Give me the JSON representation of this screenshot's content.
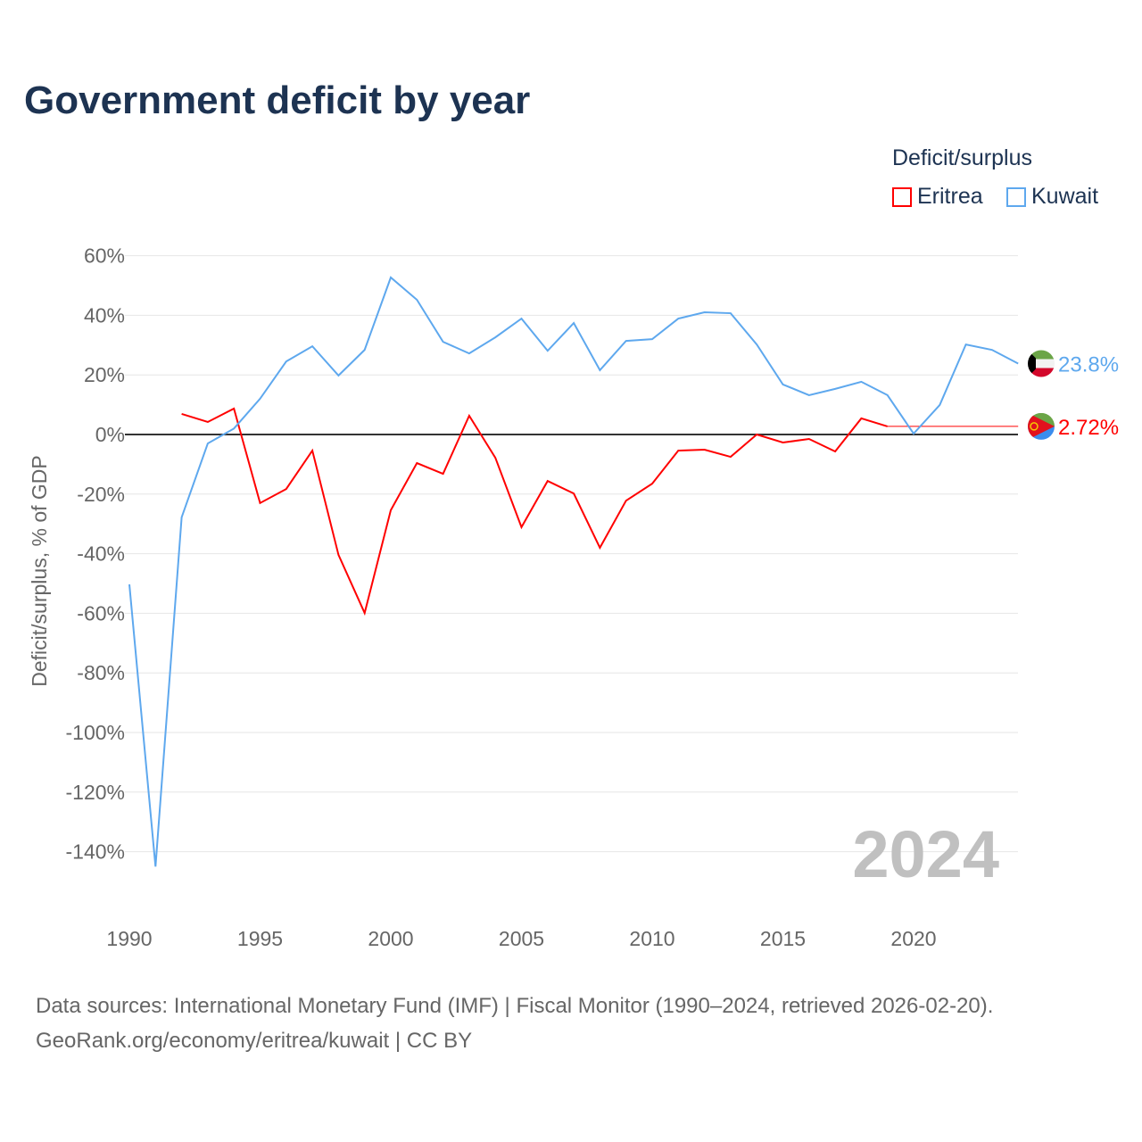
{
  "title": "Government deficit by year",
  "legend": {
    "title": "Deficit/surplus",
    "items": [
      "Eritrea",
      "Kuwait"
    ]
  },
  "footer": {
    "line1": "Data sources: International Monetary Fund (IMF) | Fiscal Monitor (1990–2024, retrieved 2026-02-20).",
    "line2": "GeoRank.org/economy/eritrea/kuwait | CC BY"
  },
  "colors": {
    "eritrea": "#ff0000",
    "kuwait": "#5ea8ee"
  },
  "chart_data": {
    "type": "line",
    "title": "Government deficit by year",
    "ylabel": "Deficit/surplus, % of GDP",
    "xlabel": "",
    "ylim": [
      -150,
      60
    ],
    "xlim": [
      1990,
      2024
    ],
    "yticks": [
      60,
      40,
      20,
      0,
      -20,
      -40,
      -60,
      -80,
      -100,
      -120,
      -140
    ],
    "ytick_labels": [
      "60%",
      "40%",
      "20%",
      "0%",
      "-20%",
      "-40%",
      "-60%",
      "-80%",
      "-100%",
      "-120%",
      "-140%"
    ],
    "xticks": [
      1990,
      1995,
      2000,
      2005,
      2010,
      2015,
      2020
    ],
    "xtick_labels": [
      "1990",
      "1995",
      "2000",
      "2005",
      "2010",
      "2015",
      "2020"
    ],
    "year_label": "2024",
    "series": [
      {
        "name": "Eritrea",
        "color": "#ff0000",
        "end_label": "2.72%",
        "last_value": 2.72,
        "x": [
          1992,
          1993,
          1994,
          1995,
          1996,
          1997,
          1998,
          1999,
          2000,
          2001,
          2002,
          2003,
          2004,
          2005,
          2006,
          2007,
          2008,
          2009,
          2010,
          2011,
          2012,
          2013,
          2014,
          2015,
          2016,
          2017,
          2018,
          2019
        ],
        "values": [
          6.9,
          4.2,
          8.7,
          -23,
          -18.3,
          -5.4,
          -40.4,
          -59.9,
          -25.4,
          -9.6,
          -13.2,
          6.3,
          -7.8,
          -31.1,
          -15.6,
          -19.8,
          -38,
          -22.2,
          -16.5,
          -5.4,
          -5.1,
          -7.5,
          0,
          -2.7,
          -1.5,
          -5.7,
          5.4,
          2.72
        ]
      },
      {
        "name": "Kuwait",
        "color": "#5ea8ee",
        "end_label": "23.8%",
        "last_value": 23.8,
        "x": [
          1990,
          1991,
          1992,
          1993,
          1994,
          1995,
          1996,
          1997,
          1998,
          1999,
          2000,
          2001,
          2002,
          2003,
          2004,
          2005,
          2006,
          2007,
          2008,
          2009,
          2010,
          2011,
          2012,
          2013,
          2014,
          2015,
          2016,
          2017,
          2018,
          2019,
          2020,
          2021,
          2022,
          2023,
          2024
        ],
        "values": [
          -50.3,
          -145,
          -27.8,
          -3,
          2,
          12,
          24.5,
          29.6,
          19.8,
          28.4,
          52.7,
          45.2,
          31.1,
          27.2,
          32.6,
          38.9,
          28.1,
          37.4,
          21.6,
          31.4,
          32,
          38.9,
          41,
          40.7,
          30.2,
          16.8,
          13.2,
          15.3,
          17.7,
          13.2,
          0.3,
          9.9,
          30.2,
          28.4,
          23.8
        ]
      }
    ]
  }
}
